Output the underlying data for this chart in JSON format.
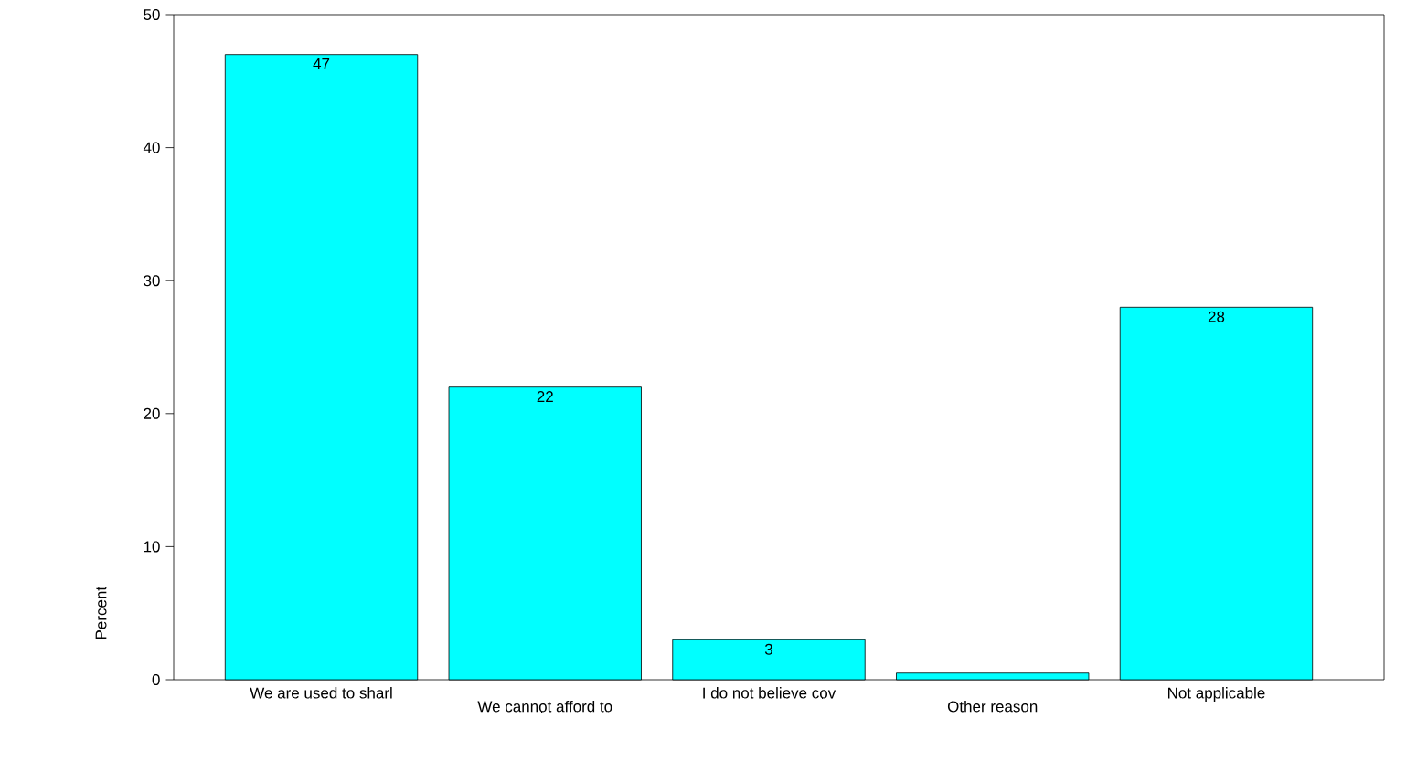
{
  "chart_data": {
    "type": "bar",
    "ylabel": "Percent",
    "categories": [
      "We are used to sharl",
      "We cannot afford to",
      "I do not believe cov",
      "Other reason",
      "Not applicable"
    ],
    "values": [
      47,
      22,
      3,
      0.5,
      28
    ],
    "value_labels": [
      "47",
      "22",
      "3",
      null,
      "28"
    ],
    "color": "#00ffff",
    "ylim": [
      0,
      50
    ],
    "yticks": [
      0,
      10,
      20,
      30,
      40,
      50
    ],
    "grid": false
  }
}
